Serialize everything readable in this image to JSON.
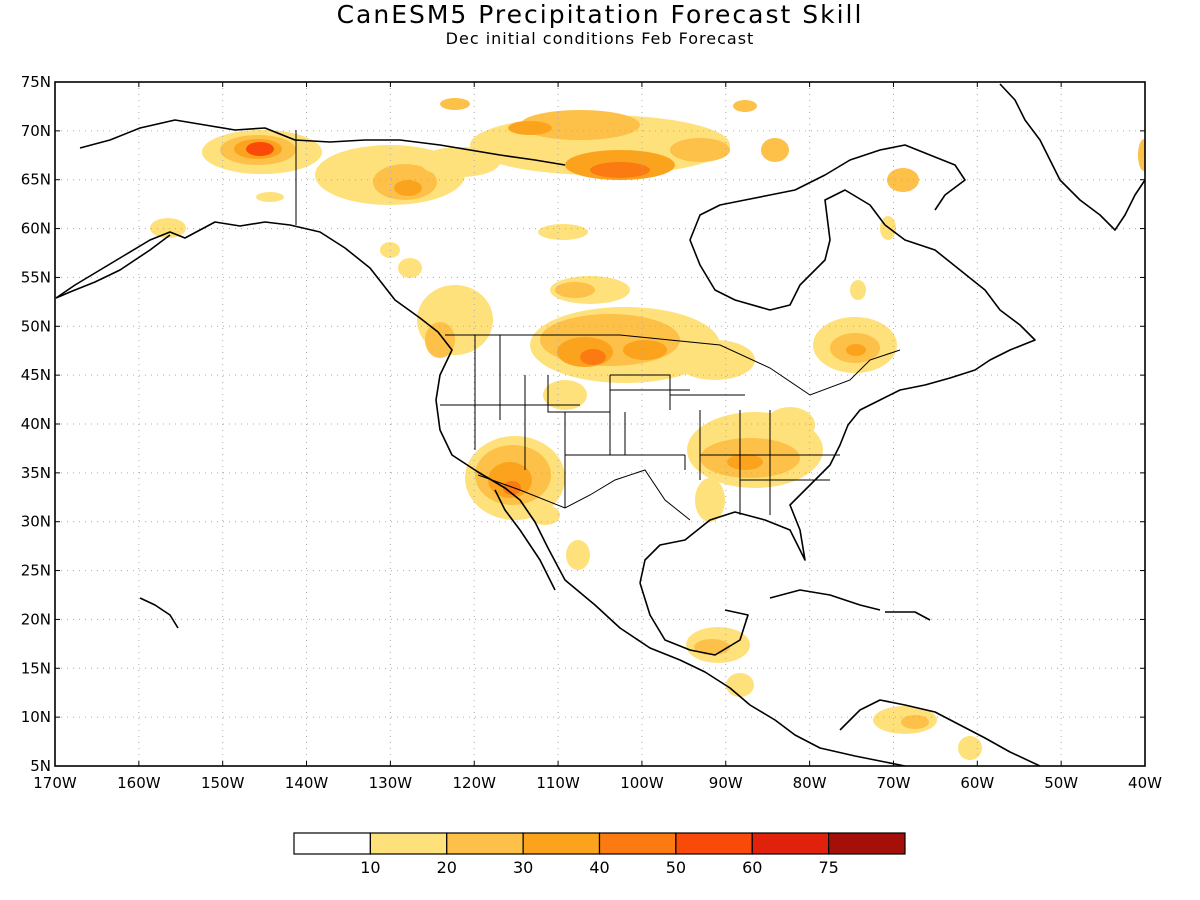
{
  "title": "CanESM5 Precipitation Forecast Skill",
  "subtitle": "Dec initial conditions  Feb Forecast",
  "map": {
    "lon_range": [
      -170,
      -40
    ],
    "lat_range": [
      5,
      75
    ],
    "lat_labels": [
      "5N",
      "10N",
      "15N",
      "20N",
      "25N",
      "30N",
      "35N",
      "40N",
      "45N",
      "50N",
      "55N",
      "60N",
      "65N",
      "70N",
      "75N"
    ],
    "lon_labels": [
      "170W",
      "160W",
      "150W",
      "140W",
      "130W",
      "120W",
      "110W",
      "100W",
      "90W",
      "80W",
      "70W",
      "60W",
      "50W",
      "40W"
    ],
    "grid": "dotted"
  },
  "colorbar": {
    "colors": [
      "#ffffff",
      "#fee17a",
      "#fdc048",
      "#fca31e",
      "#fb7b12",
      "#f94a09",
      "#e0220c",
      "#a50f0a"
    ],
    "labels": [
      "10",
      "20",
      "30",
      "40",
      "50",
      "60",
      "75"
    ]
  },
  "colors": {
    "c10": "#fee17a",
    "c20": "#fdc048",
    "c30": "#fca31e",
    "c40": "#fb7b12",
    "c50": "#f94a09"
  }
}
